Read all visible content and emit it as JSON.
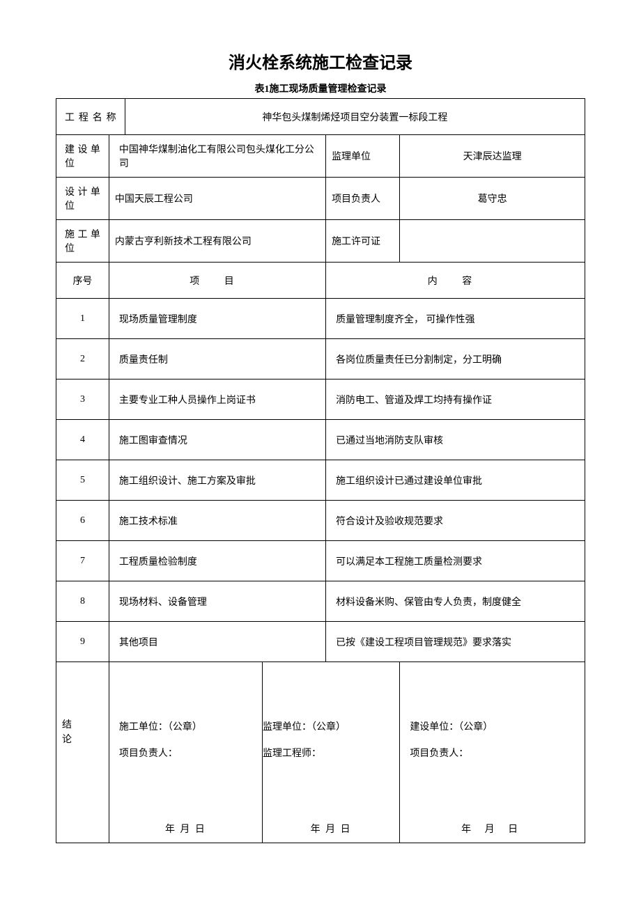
{
  "title": "消火栓系统施工检查记录",
  "subtitle": "表1施工现场质量管理检查记录",
  "labels": {
    "project_name": "工程名称",
    "construction_unit": "建设单位",
    "supervision_unit": "监理单位",
    "design_unit": "设计单位",
    "project_leader": "项目负责人",
    "contractor_unit": "施工单位",
    "construction_permit": "施工许可证",
    "seq": "序号",
    "item": "项    目",
    "content": "内    容",
    "conclusion": "结论"
  },
  "values": {
    "project_name": "神华包头煤制烯烃项目空分装置一标段工程",
    "construction_unit": "中国神华煤制油化工有限公司包头煤化工分公司",
    "supervision_unit": "天津辰达监理",
    "design_unit": "中国天辰工程公司",
    "project_leader": "葛守忠",
    "contractor_unit": "内蒙古亨利新技术工程有限公司",
    "construction_permit": ""
  },
  "items": [
    {
      "seq": "1",
      "name": "现场质量管理制度",
      "content": "质量管理制度齐全， 可操作性强"
    },
    {
      "seq": "2",
      "name": "质量责任制",
      "content": "各岗位质量责任已分割制定，分工明确"
    },
    {
      "seq": "3",
      "name": "主要专业工种人员操作上岗证书",
      "content": "消防电工、管道及焊工均持有操作证"
    },
    {
      "seq": "4",
      "name": "施工图审查情况",
      "content": "已通过当地消防支队审核"
    },
    {
      "seq": "5",
      "name": "施工组织设计、施工方案及审批",
      "content": "施工组织设计已通过建设单位审批"
    },
    {
      "seq": "6",
      "name": "施工技术标准",
      "content": "符合设计及验收规范要求"
    },
    {
      "seq": "7",
      "name": "工程质量检验制度",
      "content": "可以满足本工程施工质量检测要求"
    },
    {
      "seq": "8",
      "name": "现场材料、设备管理",
      "content": "材料设备米购、保管由专人负责，制度健全"
    },
    {
      "seq": "9",
      "name": "其他项目",
      "content": "已按《建设工程项目管理规范》要求落实"
    }
  ],
  "signatures": {
    "col1": {
      "unit_label": "施工单位：（公章）",
      "person_label": "项目负责人：",
      "date": "年 月     日"
    },
    "col2": {
      "unit_label": "监理单位：（公章）",
      "person_label": "监理工程师：",
      "date": "年 月     日"
    },
    "col3": {
      "unit_label": "建设单位：（公章）",
      "person_label": "项目负责人：",
      "date": "年   月   日"
    }
  },
  "layout": {
    "col_widths": [
      "10%",
      "3%",
      "26%",
      "12%",
      "7%",
      "7%",
      "10%",
      "25%"
    ]
  }
}
